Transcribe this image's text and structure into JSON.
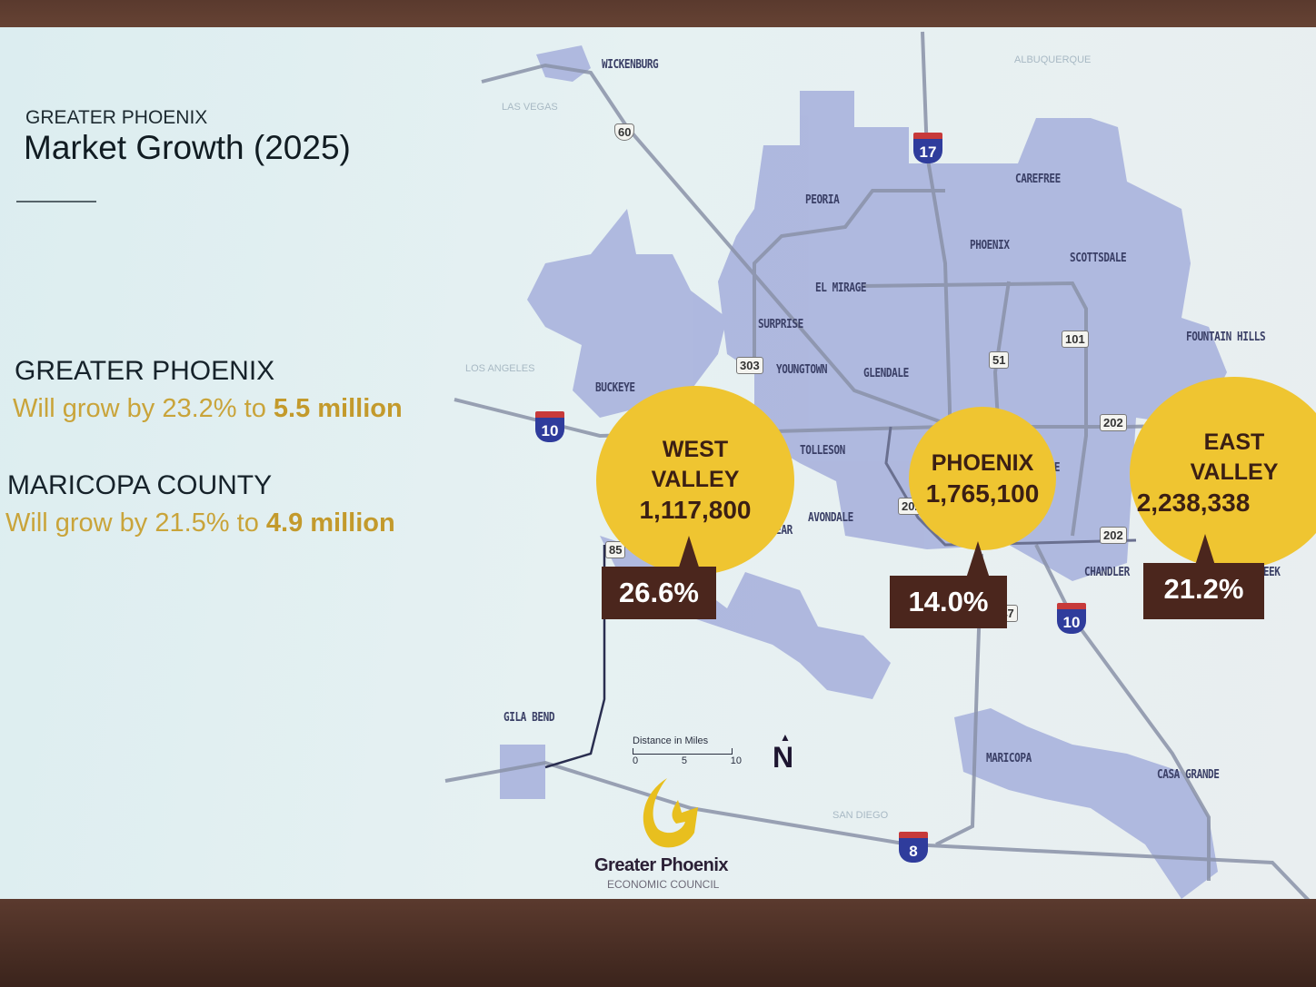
{
  "slide": {
    "kicker": "GREATER PHOENIX",
    "title": "Market Growth (2025)",
    "stats": [
      {
        "heading": "GREATER PHOENIX",
        "text_prefix": "Will grow by 23.2% to ",
        "text_bold": "5.5 million"
      },
      {
        "heading": "MARICOPA COUNTY",
        "text_prefix": "Will grow by 21.5% to ",
        "text_bold": "4.9 million"
      }
    ]
  },
  "map": {
    "cities": [
      "WICKENBURG",
      "PEORIA",
      "CAREFREE",
      "PHOENIX",
      "SCOTTSDALE",
      "EL MIRAGE",
      "SURPRISE",
      "FOUNTAIN HILLS",
      "YOUNGTOWN",
      "GLENDALE",
      "BUCKEYE",
      "TOLLESON",
      "AVONDALE",
      "GOODYEAR",
      "TEMPE",
      "CHANDLER",
      "QUEEN CREEK",
      "GILA BEND",
      "MARICOPA",
      "CASA GRANDE"
    ],
    "directions": [
      "LAS VEGAS",
      "LOS ANGELES",
      "ALBUQUERQUE",
      "SAN DIEGO"
    ],
    "highways": {
      "us60": "60",
      "i17": "17",
      "i10w": "10",
      "i10s": "10",
      "i8": "8",
      "sr303": "303",
      "sr101": "101",
      "sr51": "51",
      "sr202a": "202",
      "sr202b": "202",
      "sr202c": "202",
      "sr85": "85",
      "sr347": "347"
    },
    "scale": {
      "title": "Distance in Miles",
      "ticks": [
        "0",
        "5",
        "10"
      ]
    },
    "north_label": "N",
    "region_color": "#a9b2dd",
    "regions": [
      {
        "name": "WEST VALLEY",
        "population": "1,117,800",
        "growth": "26.6%",
        "growth_value": 26.6
      },
      {
        "name": "PHOENIX",
        "population": "1,765,100",
        "growth": "14.0%",
        "growth_value": 14.0
      },
      {
        "name": "EAST VALLEY",
        "population": "2,238,338",
        "growth": "21.2%",
        "growth_value": 21.2
      }
    ],
    "bubble_color": "#efc531",
    "growth_box_color": "#4b261d"
  },
  "logo": {
    "name": "Greater Phoenix",
    "subtitle": "ECONOMIC COUNCIL",
    "color": "#e8bf1e"
  }
}
